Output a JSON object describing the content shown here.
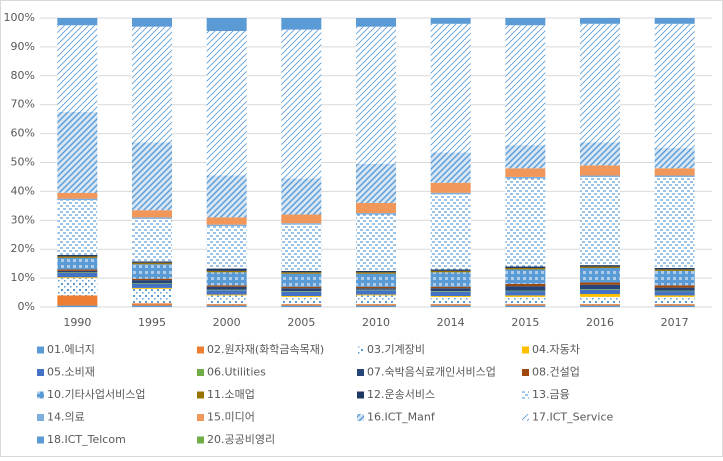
{
  "chart_data": {
    "type": "stacked_bar",
    "categories": [
      "1990",
      "1995",
      "2000",
      "2005",
      "2010",
      "2014",
      "2015",
      "2016",
      "2017"
    ],
    "ylim": [
      0,
      100
    ],
    "yticks": [
      {
        "value": 0,
        "label": "0%"
      },
      {
        "value": 10,
        "label": "10%"
      },
      {
        "value": 20,
        "label": "20%"
      },
      {
        "value": 30,
        "label": "30%"
      },
      {
        "value": 40,
        "label": "40%"
      },
      {
        "value": 50,
        "label": "50%"
      },
      {
        "value": 60,
        "label": "60%"
      },
      {
        "value": 70,
        "label": "70%"
      },
      {
        "value": 80,
        "label": "80%"
      },
      {
        "value": 90,
        "label": "90%"
      },
      {
        "value": 100,
        "label": "100%"
      }
    ],
    "grid": true,
    "legend_position": "bottom",
    "series": [
      {
        "name": "01.에너지",
        "color": "#5b9bd5",
        "pattern": "solid",
        "values": [
          0.5,
          0.5,
          0.5,
          0.5,
          0.5,
          0.5,
          0.5,
          0.5,
          0.5
        ]
      },
      {
        "name": "02.원자재(화학금속목재)",
        "color": "#ed7d31",
        "pattern": "solid",
        "values": [
          3.5,
          0.8,
          0.5,
          0.5,
          0.5,
          0.5,
          0.5,
          0.5,
          0.5
        ]
      },
      {
        "name": "03.기계장비",
        "color": "#5b9bd5",
        "pattern": "dots",
        "values": [
          6,
          5,
          3,
          2.5,
          3,
          2.5,
          2.5,
          2.5,
          2.5
        ]
      },
      {
        "name": "04.자동차",
        "color": "#ffc000",
        "pattern": "solid",
        "values": [
          0.3,
          0.3,
          0.3,
          0.3,
          0.3,
          0.3,
          0.5,
          1,
          0.5
        ]
      },
      {
        "name": "05.소비재",
        "color": "#4472c4",
        "pattern": "solid",
        "values": [
          1.5,
          1.5,
          1.5,
          1.5,
          1.5,
          1.5,
          1.5,
          1.5,
          1.5
        ]
      },
      {
        "name": "06.Utilities",
        "color": "#70ad47",
        "pattern": "solid",
        "values": [
          0.2,
          0.2,
          0.2,
          0.2,
          0.2,
          0.2,
          0.2,
          0.2,
          0.2
        ]
      },
      {
        "name": "07.숙박음식료개인서비스업",
        "color": "#264478",
        "pattern": "solid",
        "values": [
          0.5,
          1,
          1,
          1,
          0.5,
          1,
          1.5,
          1.5,
          1
        ]
      },
      {
        "name": "08.건설업",
        "color": "#9e480e",
        "pattern": "solid",
        "values": [
          0.5,
          0.5,
          0.5,
          0.5,
          0.5,
          0.5,
          0.8,
          0.8,
          0.8
        ]
      },
      {
        "name": "10.기타사업서비스업",
        "color": "#5b9bd5",
        "pattern": "grid",
        "values": [
          4,
          5,
          4.5,
          4.5,
          4.5,
          5,
          5,
          5,
          5
        ]
      },
      {
        "name": "11.소매업",
        "color": "#997300",
        "pattern": "solid",
        "values": [
          0.5,
          0.5,
          0.5,
          0.5,
          0.5,
          0.5,
          0.5,
          0.5,
          0.5
        ]
      },
      {
        "name": "12.운송서비스",
        "color": "#1f3864",
        "pattern": "solid",
        "values": [
          0.5,
          0.5,
          0.8,
          0.5,
          0.5,
          0.5,
          0.5,
          0.5,
          0.5
        ]
      },
      {
        "name": "13.금융",
        "color": "#5b9bd5",
        "pattern": "dash",
        "values": [
          19,
          14.7,
          14.7,
          16,
          19.5,
          26,
          30.5,
          30.5,
          31.5
        ]
      },
      {
        "name": "14.의료",
        "color": "#7cafdd",
        "pattern": "solid",
        "values": [
          0.5,
          0.5,
          0.5,
          0.5,
          0.5,
          0.5,
          0.5,
          0.5,
          0.5
        ]
      },
      {
        "name": "15.미디어",
        "color": "#f1975a",
        "pattern": "solid",
        "values": [
          2,
          2.5,
          2.5,
          3,
          3.5,
          3.5,
          3,
          3.5,
          2.5
        ]
      },
      {
        "name": "16.ICT_Manf",
        "color": "#5b9bd5",
        "pattern": "diag",
        "values": [
          28,
          23.5,
          14.5,
          12.5,
          13.5,
          10.5,
          8,
          8,
          7
        ]
      },
      {
        "name": "17.ICT_Service",
        "color": "#5b9bd5",
        "pattern": "diag-light",
        "values": [
          30,
          40,
          50,
          51.5,
          47.5,
          44.5,
          41.5,
          41,
          43
        ]
      },
      {
        "name": "18.ICT_Telcom",
        "color": "#5b9bd5",
        "pattern": "solid",
        "values": [
          2.5,
          3,
          4.5,
          4,
          3,
          2,
          2.5,
          2,
          2
        ]
      },
      {
        "name": "20.공공비영리",
        "color": "#70ad47",
        "pattern": "solid",
        "values": [
          0,
          0,
          0,
          0,
          0,
          0,
          0,
          0,
          0
        ]
      }
    ]
  }
}
